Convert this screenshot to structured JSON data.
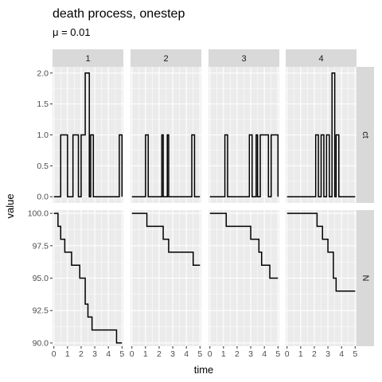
{
  "chart_data": {
    "type": "line",
    "step": true,
    "title": "death process, onestep",
    "subtitle": "μ = 0.01",
    "xlabel": "time",
    "ylabel": "value",
    "grid": true,
    "facet_cols": [
      "1",
      "2",
      "3",
      "4"
    ],
    "facet_rows": [
      "ct",
      "N"
    ],
    "xlim": [
      -0.1,
      5.1
    ],
    "x_ticks": [
      0,
      1,
      2,
      3,
      4,
      5
    ],
    "x_tick_labels": [
      "0",
      "1",
      "2",
      "3",
      "4",
      "5"
    ],
    "rows": [
      {
        "name": "ct",
        "ylim": [
          -0.1,
          2.1
        ],
        "y_ticks": [
          0,
          0.5,
          1,
          1.5,
          2
        ],
        "y_tick_labels": [
          "0.0",
          "0.5",
          "1.0",
          "1.5",
          "2.0"
        ]
      },
      {
        "name": "N",
        "ylim": [
          89.75,
          100.25
        ],
        "y_ticks": [
          90,
          92.5,
          95,
          97.5,
          100
        ],
        "y_tick_labels": [
          "90.0",
          "92.5",
          "95.0",
          "97.5",
          "100.0"
        ]
      }
    ],
    "panels": [
      {
        "facet": "1",
        "row": "ct",
        "x": [
          0,
          0.5,
          1.0,
          1.2,
          1.4,
          1.8,
          2.0,
          2.3,
          2.6,
          2.7,
          2.9,
          4.6,
          4.8,
          5.0
        ],
        "y": [
          0,
          1,
          0,
          0,
          1,
          0,
          1,
          2,
          0,
          1,
          0,
          0,
          1,
          0
        ]
      },
      {
        "facet": "1",
        "row": "N",
        "x": [
          0,
          0.3,
          0.5,
          0.8,
          1.3,
          1.9,
          2.3,
          2.5,
          2.8,
          4.6,
          5.0
        ],
        "y": [
          100,
          99,
          98,
          97,
          96,
          95,
          93,
          92,
          91,
          90,
          90
        ]
      },
      {
        "facet": "2",
        "row": "ct",
        "x": [
          0,
          1.0,
          1.2,
          2.2,
          2.3,
          2.6,
          2.7,
          4.4,
          4.6,
          5.0
        ],
        "y": [
          0,
          1,
          0,
          1,
          0,
          1,
          0,
          1,
          0,
          0
        ]
      },
      {
        "facet": "2",
        "row": "N",
        "x": [
          0,
          1.1,
          2.3,
          2.7,
          4.5,
          5.0
        ],
        "y": [
          100,
          99,
          98,
          97,
          96,
          96
        ]
      },
      {
        "facet": "3",
        "row": "ct",
        "x": [
          0,
          1.1,
          1.3,
          2.9,
          3.1,
          3.4,
          3.5,
          3.7,
          4.3,
          4.5,
          5.0
        ],
        "y": [
          0,
          1,
          0,
          1,
          0,
          1,
          0,
          1,
          0,
          1,
          0
        ]
      },
      {
        "facet": "3",
        "row": "N",
        "x": [
          0,
          1.2,
          3.0,
          3.6,
          3.8,
          4.4,
          5.0
        ],
        "y": [
          100,
          99,
          98,
          97,
          96,
          95,
          95
        ]
      },
      {
        "facet": "4",
        "row": "ct",
        "x": [
          0,
          2.1,
          2.3,
          2.5,
          2.7,
          2.9,
          3.1,
          3.3,
          3.5,
          3.6,
          3.8,
          5.0
        ],
        "y": [
          0,
          1,
          0,
          1,
          0,
          1,
          0,
          2,
          0,
          1,
          0,
          0
        ]
      },
      {
        "facet": "4",
        "row": "N",
        "x": [
          0,
          2.2,
          2.6,
          3.0,
          3.4,
          3.6,
          5.0
        ],
        "y": [
          100,
          99,
          98,
          97,
          95,
          94,
          94
        ]
      }
    ]
  }
}
